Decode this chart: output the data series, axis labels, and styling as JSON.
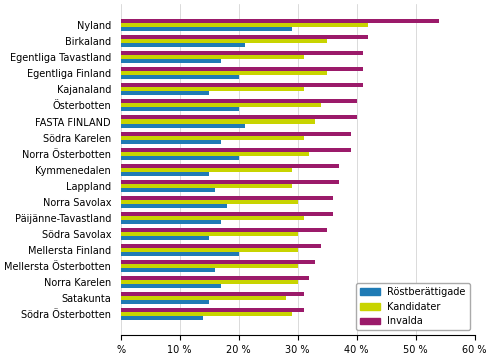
{
  "regions": [
    "Nyland",
    "Birkaland",
    "Egentliga Tavastland",
    "Egentliga Finland",
    "Kajanaland",
    "Österbotten",
    "FASTA FINLAND",
    "Södra Karelen",
    "Norra Österbotten",
    "Kymmenedalen",
    "Lappland",
    "Norra Savolax",
    "Päijänne-Tavastland",
    "Södra Savolax",
    "Mellersta Finland",
    "Mellersta Österbotten",
    "Norra Karelen",
    "Satakunta",
    "Södra Österbotten"
  ],
  "rostberättigade": [
    29,
    21,
    17,
    20,
    15,
    20,
    21,
    17,
    20,
    15,
    16,
    18,
    17,
    15,
    20,
    16,
    17,
    15,
    14
  ],
  "kandidater": [
    42,
    35,
    31,
    35,
    31,
    34,
    33,
    31,
    32,
    29,
    29,
    30,
    31,
    30,
    30,
    30,
    30,
    28,
    29
  ],
  "invalda": [
    54,
    42,
    41,
    41,
    41,
    40,
    40,
    39,
    39,
    37,
    37,
    36,
    36,
    35,
    34,
    33,
    32,
    31,
    31
  ],
  "colors": {
    "rostberättigade": "#1F7BB5",
    "kandidater": "#C8D400",
    "invalda": "#9B1A6A"
  },
  "xlim": [
    0,
    60
  ],
  "xticks": [
    0,
    10,
    20,
    30,
    40,
    50,
    60
  ],
  "xtick_labels": [
    "%",
    "10 %",
    "20 %",
    "30 %",
    "40 %",
    "50 %",
    "60 %"
  ],
  "legend_labels": [
    "Röstberättigade",
    "Kandidater",
    "Invalda"
  ],
  "bar_height": 0.25,
  "figsize": [
    4.91,
    3.59
  ],
  "dpi": 100
}
